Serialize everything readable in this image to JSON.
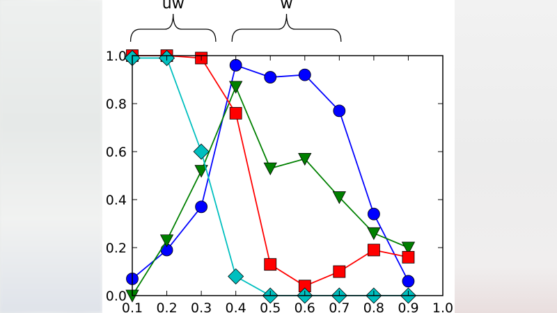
{
  "chart_data": {
    "type": "line",
    "title": "",
    "xlabel": "",
    "ylabel": "",
    "xlim": [
      0.1,
      1.0
    ],
    "ylim": [
      0.0,
      1.0
    ],
    "grid": false,
    "x": [
      0.1,
      0.2,
      0.3,
      0.4,
      0.5,
      0.6,
      0.7,
      0.8,
      0.9
    ],
    "xticks": [
      "0.1",
      "0.2",
      "0.3",
      "0.4",
      "0.5",
      "0.6",
      "0.7",
      "0.8",
      "0.9",
      "1.0"
    ],
    "yticks": [
      "0.0",
      "0.2",
      "0.4",
      "0.6",
      "0.8",
      "1.0"
    ],
    "series": [
      {
        "marker": "circle",
        "color": "#0000ff",
        "values": [
          0.07,
          0.19,
          0.37,
          0.96,
          0.91,
          0.92,
          0.77,
          0.34,
          0.06
        ]
      },
      {
        "marker": "triangle-down",
        "color": "#008000",
        "values": [
          0.0,
          0.23,
          0.52,
          0.87,
          0.53,
          0.57,
          0.41,
          0.26,
          0.2
        ]
      },
      {
        "marker": "square",
        "color": "#ff0000",
        "values": [
          1.0,
          1.0,
          0.99,
          0.76,
          0.13,
          0.04,
          0.1,
          0.19,
          0.16
        ]
      },
      {
        "marker": "diamond",
        "color": "#00bfbf",
        "values": [
          0.99,
          0.99,
          0.6,
          0.08,
          0.0,
          0.0,
          0.0,
          0.0,
          0.0
        ]
      }
    ],
    "annotations": [
      {
        "text": "uw",
        "x_range": [
          0.095,
          0.342
        ]
      },
      {
        "text": "w",
        "x_range": [
          0.389,
          0.705
        ]
      }
    ]
  }
}
